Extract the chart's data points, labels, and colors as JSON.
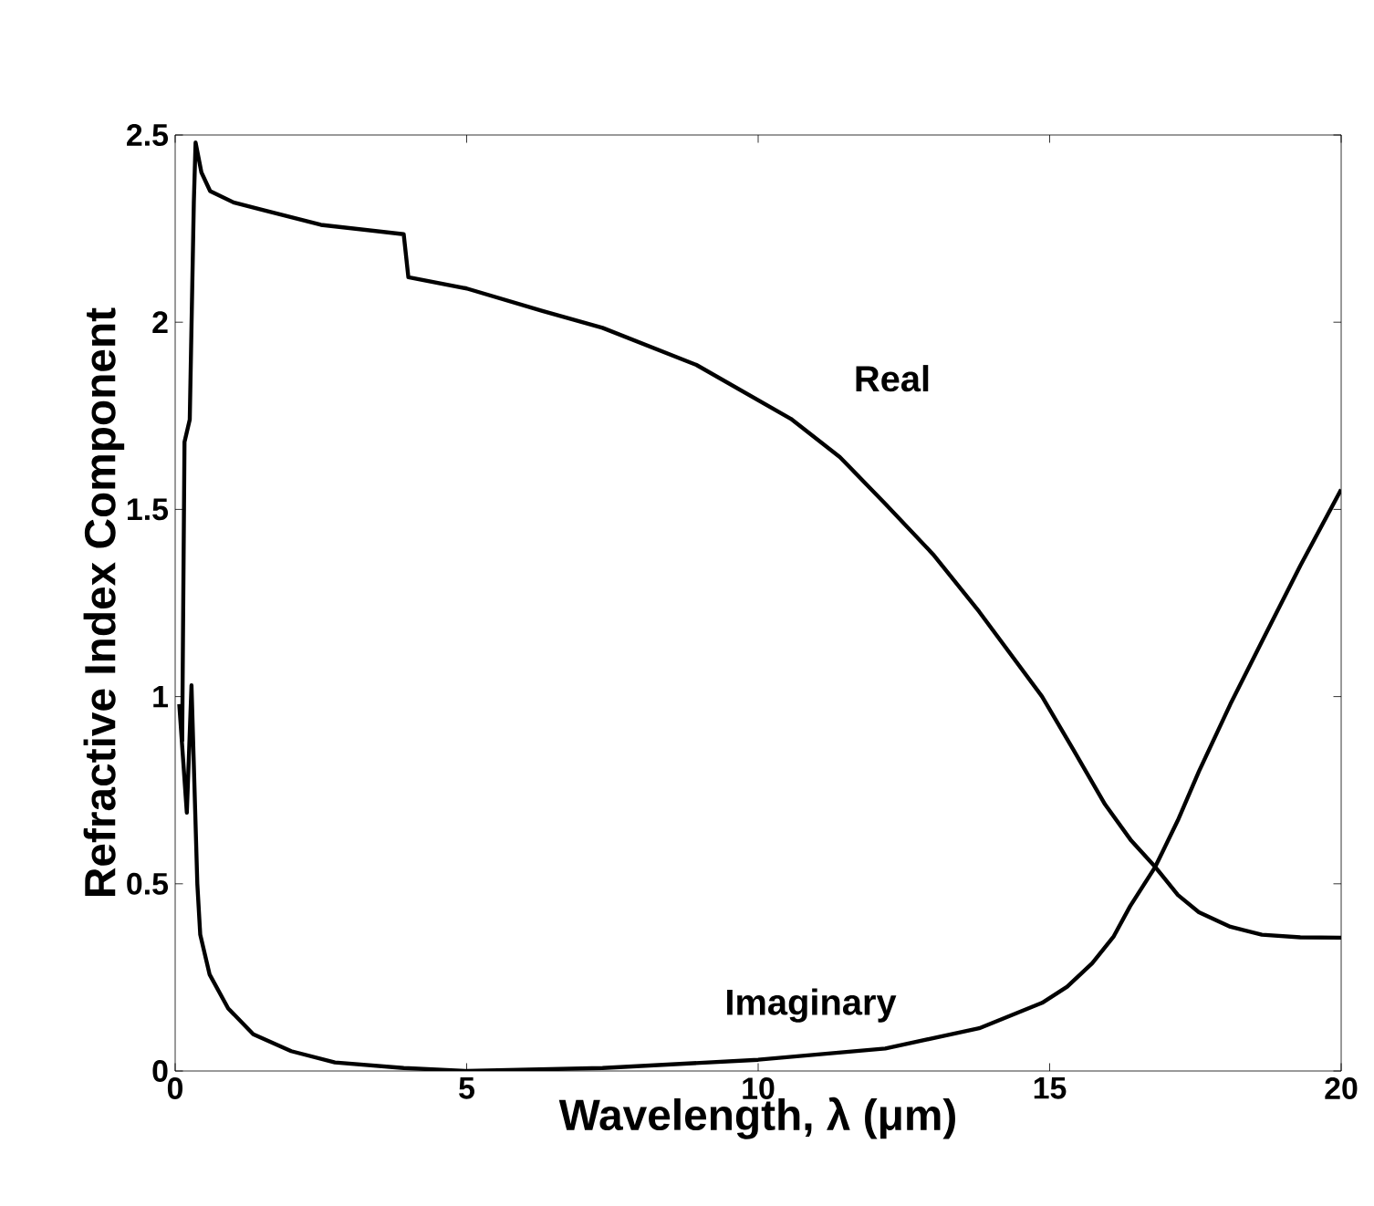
{
  "chart_data": {
    "type": "line",
    "xlabel": "Wavelength, λ (μm)",
    "ylabel": "Refractive Index Component",
    "xlim": [
      0,
      20
    ],
    "ylim": [
      0,
      2.5
    ],
    "xticks": [
      0,
      5,
      10,
      15,
      20
    ],
    "yticks": [
      0,
      0.5,
      1,
      1.5,
      2,
      2.5
    ],
    "grid": false,
    "marker": "none",
    "line_style": "solid",
    "series": [
      {
        "name": "Real",
        "color": "#000000",
        "x": [
          0.12,
          0.16,
          0.25,
          0.32,
          0.35,
          0.45,
          0.6,
          1.0,
          1.5,
          2.5,
          3.92,
          4.0,
          5.0,
          6.3,
          7.33,
          8.94,
          10.56,
          11.4,
          12.18,
          13.0,
          13.79,
          14.87,
          15.4,
          15.95,
          16.4,
          16.81,
          17.2,
          17.56,
          18.1,
          18.64,
          19.3,
          20
        ],
        "values": [
          0.88,
          1.68,
          1.74,
          2.32,
          2.48,
          2.4,
          2.35,
          2.32,
          2.3,
          2.26,
          2.235,
          2.12,
          2.09,
          2.03,
          1.985,
          1.886,
          1.742,
          1.64,
          1.515,
          1.38,
          1.227,
          1.0,
          0.86,
          0.712,
          0.615,
          0.545,
          0.47,
          0.424,
          0.385,
          0.364,
          0.357,
          0.356
        ]
      },
      {
        "name": "Imaginary",
        "color": "#000000",
        "x": [
          0.07,
          0.2,
          0.28,
          0.38,
          0.43,
          0.59,
          0.91,
          1.34,
          1.99,
          2.74,
          3.92,
          5.0,
          7.33,
          10,
          12.18,
          13.79,
          14.87,
          15.3,
          15.73,
          16.1,
          16.38,
          16.81,
          17.2,
          17.56,
          18.1,
          18.65,
          19.3,
          20
        ],
        "values": [
          0.98,
          0.69,
          1.03,
          0.5,
          0.364,
          0.258,
          0.167,
          0.098,
          0.053,
          0.023,
          0.008,
          0.0,
          0.008,
          0.03,
          0.06,
          0.114,
          0.182,
          0.225,
          0.288,
          0.36,
          0.44,
          0.545,
          0.67,
          0.8,
          0.98,
          1.15,
          1.35,
          1.553
        ]
      }
    ]
  }
}
